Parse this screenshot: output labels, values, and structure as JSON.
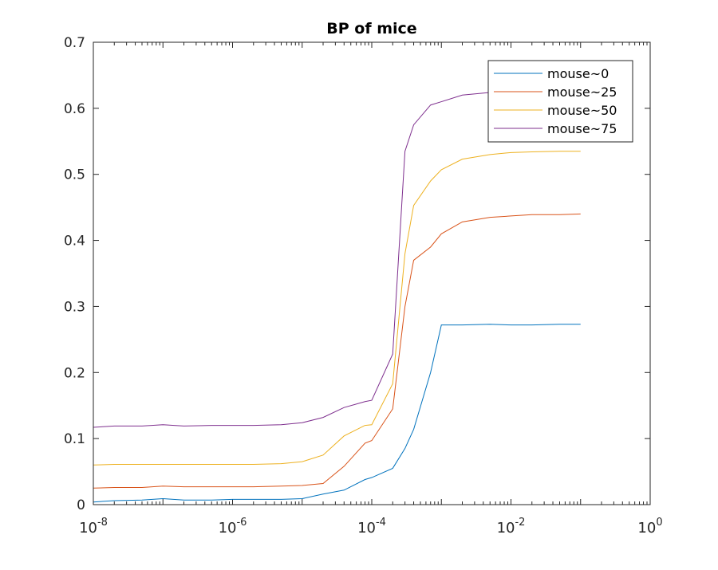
{
  "chart_data": {
    "type": "line",
    "title": "BP of mice",
    "xlabel": "",
    "ylabel": "",
    "xscale": "log",
    "xlim": [
      1e-08,
      1
    ],
    "ylim": [
      0,
      0.7
    ],
    "grid": false,
    "legend_position": "top-right",
    "x_ticks": [
      {
        "value": 1e-08,
        "base": "10",
        "exp": "-8"
      },
      {
        "value": 1e-06,
        "base": "10",
        "exp": "-6"
      },
      {
        "value": 0.0001,
        "base": "10",
        "exp": "-4"
      },
      {
        "value": 0.01,
        "base": "10",
        "exp": "-2"
      },
      {
        "value": 1,
        "base": "10",
        "exp": "0"
      }
    ],
    "y_ticks": [
      {
        "value": 0,
        "label": "0"
      },
      {
        "value": 0.1,
        "label": "0.1"
      },
      {
        "value": 0.2,
        "label": "0.2"
      },
      {
        "value": 0.3,
        "label": "0.3"
      },
      {
        "value": 0.4,
        "label": "0.4"
      },
      {
        "value": 0.5,
        "label": "0.5"
      },
      {
        "value": 0.6,
        "label": "0.6"
      },
      {
        "value": 0.7,
        "label": "0.7"
      }
    ],
    "x": [
      1e-08,
      2e-08,
      5e-08,
      1e-07,
      2e-07,
      5e-07,
      1e-06,
      2e-06,
      5e-06,
      1e-05,
      2e-05,
      4e-05,
      8e-05,
      0.0001,
      0.0002,
      0.0003,
      0.0004,
      0.0007,
      0.001,
      0.002,
      0.005,
      0.01,
      0.02,
      0.05,
      0.1
    ],
    "series": [
      {
        "name": "mouse~0",
        "color": "#0072BD",
        "values": [
          0.004,
          0.006,
          0.007,
          0.009,
          0.007,
          0.007,
          0.008,
          0.008,
          0.008,
          0.009,
          0.016,
          0.022,
          0.038,
          0.041,
          0.055,
          0.085,
          0.114,
          0.2,
          0.272,
          0.272,
          0.273,
          0.272,
          0.272,
          0.273,
          0.273
        ]
      },
      {
        "name": "mouse~25",
        "color": "#D95319",
        "values": [
          0.025,
          0.026,
          0.026,
          0.028,
          0.027,
          0.027,
          0.027,
          0.027,
          0.028,
          0.029,
          0.032,
          0.058,
          0.093,
          0.097,
          0.145,
          0.3,
          0.37,
          0.39,
          0.41,
          0.428,
          0.435,
          0.437,
          0.439,
          0.439,
          0.44
        ]
      },
      {
        "name": "mouse~50",
        "color": "#EDB120",
        "values": [
          0.06,
          0.061,
          0.061,
          0.061,
          0.061,
          0.061,
          0.061,
          0.061,
          0.062,
          0.065,
          0.075,
          0.104,
          0.12,
          0.121,
          0.183,
          0.38,
          0.453,
          0.49,
          0.507,
          0.523,
          0.53,
          0.533,
          0.534,
          0.535,
          0.535
        ]
      },
      {
        "name": "mouse~75",
        "color": "#7E2F8E",
        "values": [
          0.117,
          0.119,
          0.119,
          0.121,
          0.119,
          0.12,
          0.12,
          0.12,
          0.121,
          0.124,
          0.132,
          0.147,
          0.156,
          0.158,
          0.228,
          0.535,
          0.575,
          0.605,
          0.61,
          0.62,
          0.624,
          0.626,
          0.626,
          0.626,
          0.626
        ]
      }
    ]
  }
}
